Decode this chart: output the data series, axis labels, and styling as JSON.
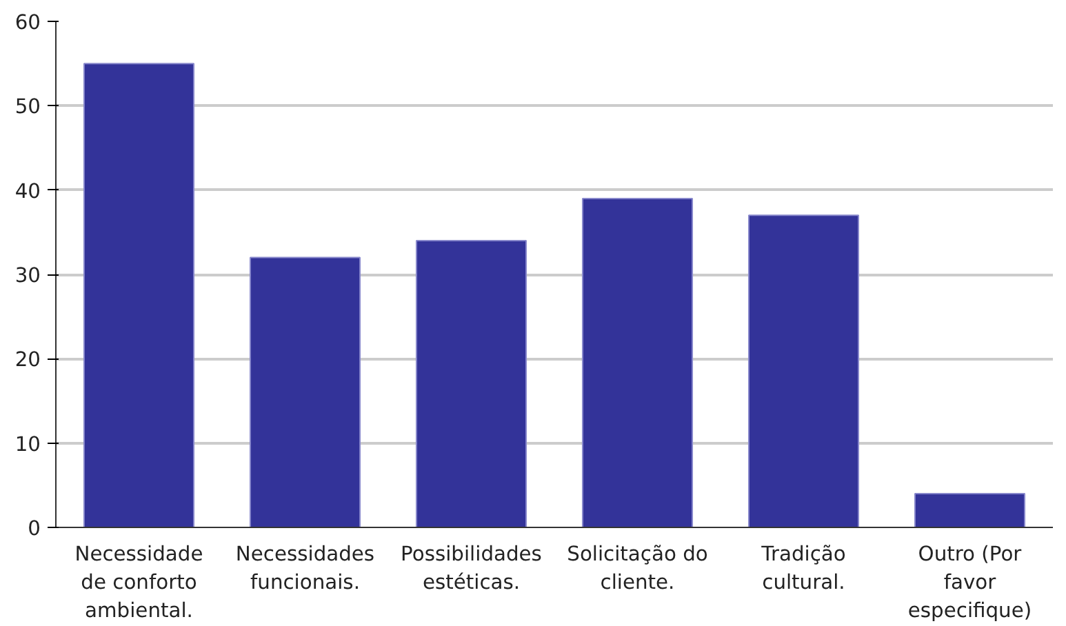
{
  "chart_data": {
    "type": "bar",
    "categories": [
      "Necessidade\nde conforto\nambiental.",
      "Necessidades\nfuncionais.",
      "Possibilidades\nestéticas.",
      "Solicitação do\ncliente.",
      "Tradição\ncultural.",
      "Outro (Por\nfavor\nespecifique)"
    ],
    "values": [
      55,
      32,
      34,
      39,
      37,
      4
    ],
    "color": "#333399",
    "ylim": [
      0,
      60
    ],
    "yticks": [
      0,
      10,
      20,
      30,
      40,
      50,
      60
    ],
    "grid": "y"
  }
}
